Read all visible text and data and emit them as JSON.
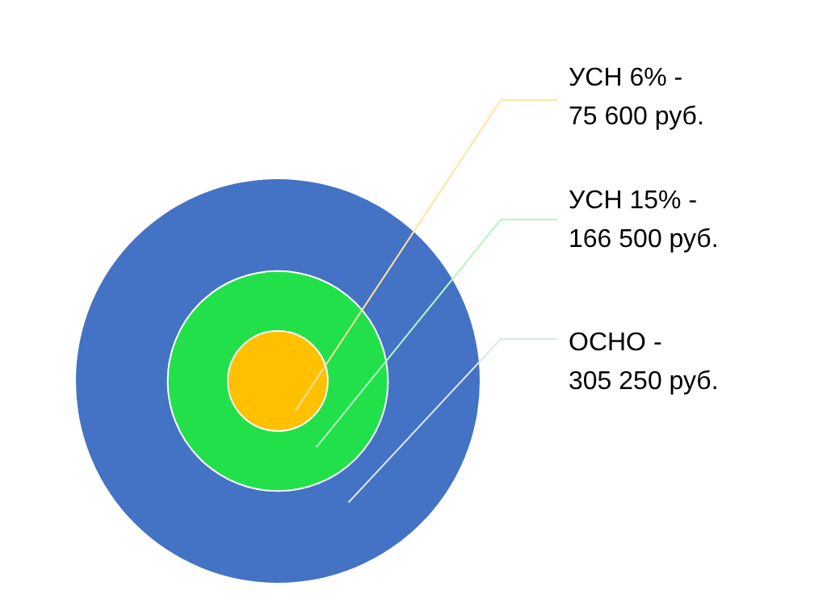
{
  "chart_data": {
    "type": "other",
    "categories": [
      "УСН 6% -",
      "УСН 15% -",
      "ОСНО -"
    ],
    "values": [
      75600,
      166500,
      305250
    ],
    "value_labels": [
      "75 600 руб.",
      "166 500 руб.",
      "305 250 руб."
    ],
    "colors": [
      "#ffc000",
      "#22e04a",
      "#4472c4"
    ]
  }
}
